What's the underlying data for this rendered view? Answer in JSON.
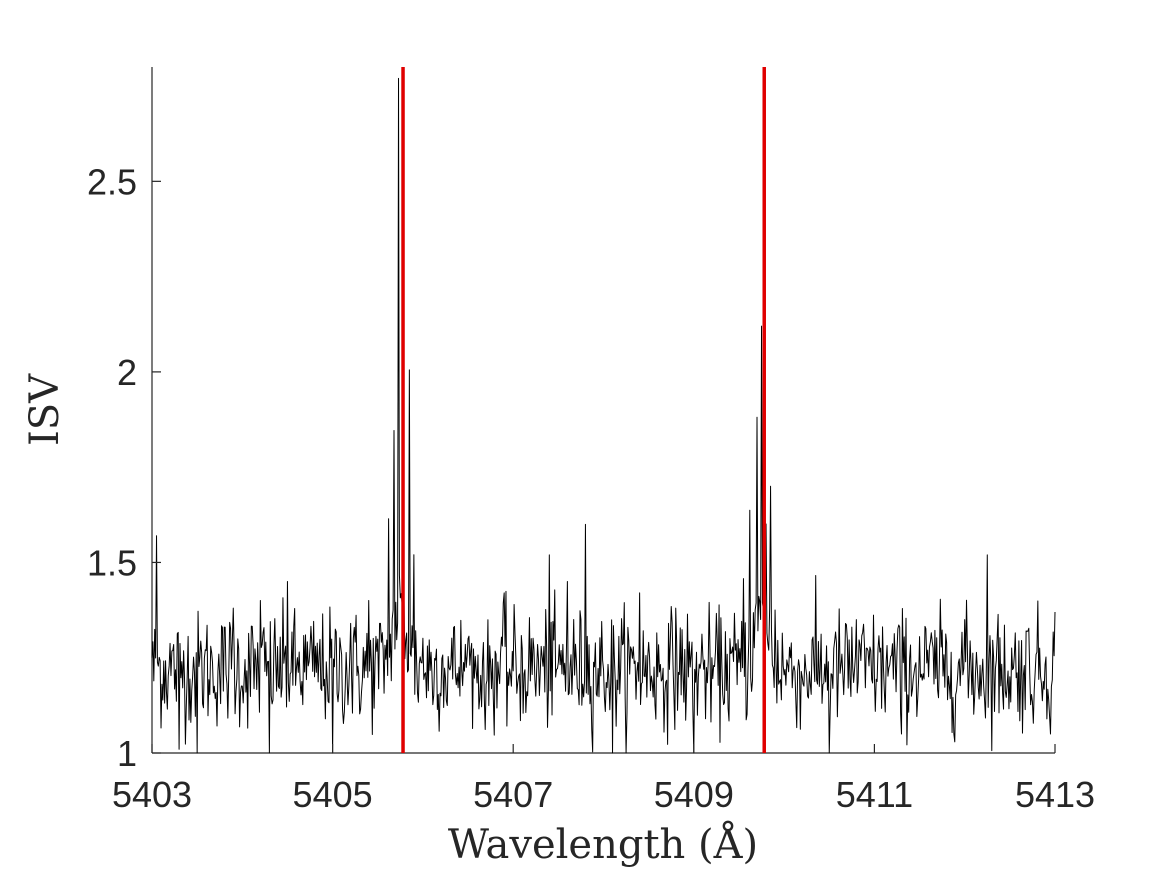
{
  "chart_data": {
    "type": "line",
    "title": "",
    "xlabel": "Wavelength (Å)",
    "ylabel": "ISV",
    "xlim": [
      5403,
      5413
    ],
    "ylim": [
      1,
      2.8
    ],
    "xticks": [
      5403,
      5405,
      5407,
      5409,
      5411,
      5413
    ],
    "xtick_labels": [
      "5403",
      "5405",
      "5407",
      "5409",
      "5411",
      "5413"
    ],
    "yticks": [
      1,
      1.5,
      2,
      2.5
    ],
    "ytick_labels": [
      "1",
      "1.5",
      "2",
      "2.5"
    ],
    "grid": false,
    "legend": "none",
    "series": [
      {
        "style": "line",
        "color": "#000000",
        "noise_model": {
          "baseline": 1.22,
          "noise_sd": 0.075,
          "step": 0.01,
          "min_clip": 1.0,
          "points": [
            [
              5403.0,
              1.25
            ],
            [
              5403.05,
              1.57
            ],
            [
              5403.3,
              1.01
            ],
            [
              5403.5,
              1.0
            ],
            [
              5403.9,
              1.38
            ],
            [
              5404.2,
              1.4
            ],
            [
              5404.3,
              1.0
            ],
            [
              5404.5,
              1.45
            ],
            [
              5404.8,
              1.2
            ],
            [
              5405.0,
              1.0
            ],
            [
              5405.2,
              1.34
            ],
            [
              5405.4,
              1.4
            ],
            [
              5405.55,
              1.3
            ],
            [
              5405.62,
              1.55
            ],
            [
              5405.68,
              1.72
            ],
            [
              5405.73,
              2.62
            ],
            [
              5405.78,
              1.65
            ],
            [
              5405.85,
              1.95
            ],
            [
              5405.9,
              1.5
            ],
            [
              5406.0,
              1.3
            ],
            [
              5406.2,
              1.15
            ],
            [
              5406.5,
              1.3
            ],
            [
              5406.7,
              1.18
            ],
            [
              5406.9,
              1.42
            ],
            [
              5407.2,
              1.3
            ],
            [
              5407.4,
              1.52
            ],
            [
              5407.6,
              1.45
            ],
            [
              5407.8,
              1.6
            ],
            [
              5408.0,
              1.22
            ],
            [
              5408.1,
              1.0
            ],
            [
              5408.4,
              1.42
            ],
            [
              5408.6,
              1.2
            ],
            [
              5408.8,
              1.38
            ],
            [
              5409.0,
              1.0
            ],
            [
              5409.2,
              1.25
            ],
            [
              5409.4,
              1.3
            ],
            [
              5409.55,
              1.45
            ],
            [
              5409.62,
              1.6
            ],
            [
              5409.7,
              1.78
            ],
            [
              5409.75,
              2.0
            ],
            [
              5409.8,
              1.5
            ],
            [
              5409.85,
              1.64
            ],
            [
              5409.9,
              1.35
            ],
            [
              5410.2,
              1.2
            ],
            [
              5410.5,
              1.0
            ],
            [
              5410.8,
              1.35
            ],
            [
              5411.0,
              1.2
            ],
            [
              5411.3,
              1.05
            ],
            [
              5411.6,
              1.2
            ],
            [
              5412.0,
              1.35
            ],
            [
              5412.25,
              1.52
            ],
            [
              5412.5,
              1.2
            ],
            [
              5412.7,
              1.32
            ],
            [
              5412.95,
              1.05
            ],
            [
              5413.0,
              1.37
            ]
          ]
        }
      }
    ],
    "vertical_lines": [
      {
        "x": 5405.78,
        "color": "#e00000"
      },
      {
        "x": 5409.78,
        "color": "#e00000"
      }
    ]
  }
}
